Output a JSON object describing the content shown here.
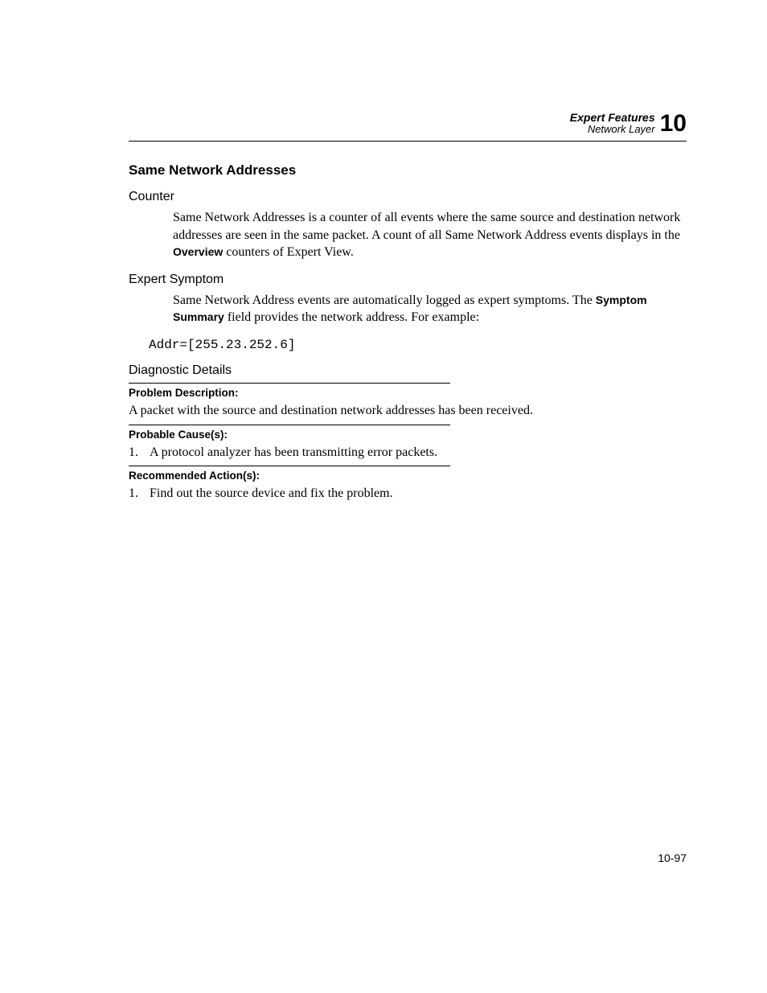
{
  "header": {
    "line1": "Expert Features",
    "line2": "Network Layer",
    "chapter": "10"
  },
  "title": "Same Network Addresses",
  "counter": {
    "heading": "Counter",
    "para_pre": "Same Network Addresses is a counter of all events where the same source and destination network addresses are seen in the same packet. A count of all Same Network Address events displays in the ",
    "bold": "Overview",
    "para_post": " counters of Expert View."
  },
  "symptom": {
    "heading": "Expert Symptom",
    "para_pre": "Same Network Address events are automatically logged as expert symptoms. The ",
    "bold": "Symptom Summary",
    "para_post": " field provides the network address. For example:",
    "code": "Addr=[255.23.252.6]"
  },
  "diagnostic": {
    "heading": "Diagnostic Details",
    "problem": {
      "label": "Problem Description:",
      "text": "A packet with the source and destination network addresses has been received."
    },
    "cause": {
      "label": "Probable Cause(s):",
      "num": "1.",
      "text": "A protocol analyzer has been transmitting error packets."
    },
    "action": {
      "label": "Recommended Action(s):",
      "num": "1.",
      "text": "Find out the source device and fix the problem."
    }
  },
  "pagenum": "10-97"
}
